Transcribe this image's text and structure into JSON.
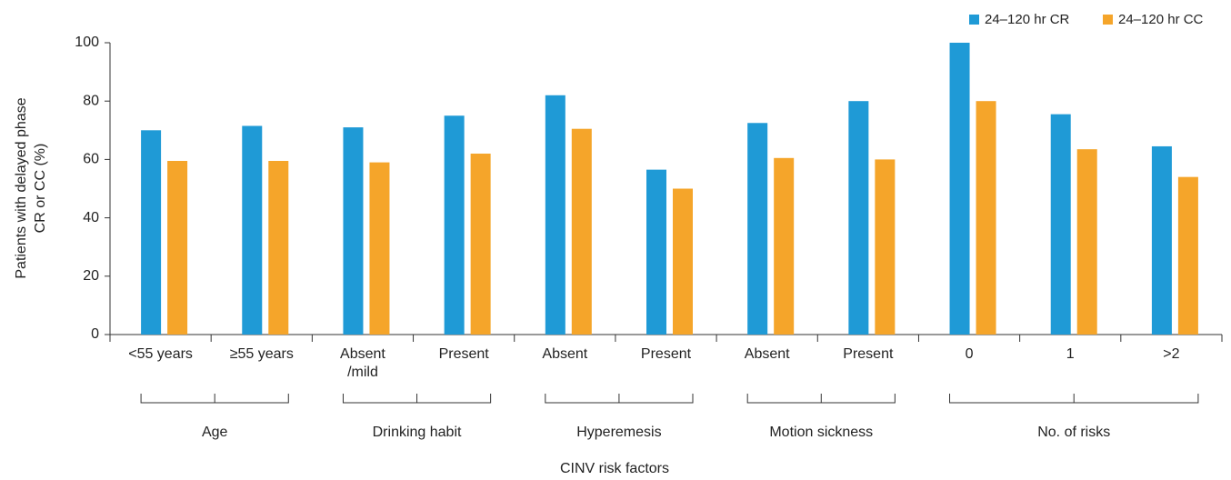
{
  "chart_data": {
    "type": "bar",
    "xlabel": "CINV risk factors",
    "ylabel": [
      "Patients with delayed phase",
      "CR or CC (%)"
    ],
    "categories": [
      "<55 years",
      "≥55 years",
      "Absent\n/mild",
      "Present",
      "Absent",
      "Present",
      "Absent",
      "Present",
      "0",
      "1",
      ">2"
    ],
    "groups": [
      {
        "name": "Age",
        "span": 2
      },
      {
        "name": "Drinking habit",
        "span": 2
      },
      {
        "name": "Hyperemesis",
        "span": 2
      },
      {
        "name": "Motion sickness",
        "span": 2
      },
      {
        "name": "No. of risks",
        "span": 3
      }
    ],
    "series": [
      {
        "name": "24–120 hr CR",
        "color": "#1f9ad6",
        "values": [
          70,
          71.5,
          71,
          75,
          82,
          56.5,
          72.5,
          80,
          100,
          75.5,
          64.5
        ]
      },
      {
        "name": "24–120 hr CC",
        "color": "#f5a52a",
        "values": [
          59.5,
          59.5,
          59,
          62,
          70.5,
          50,
          60.5,
          60,
          80,
          63.5,
          54
        ]
      }
    ],
    "ylim": [
      0,
      100
    ],
    "yticks": [
      0,
      20,
      40,
      60,
      80,
      100
    ],
    "legend": "top-right"
  }
}
